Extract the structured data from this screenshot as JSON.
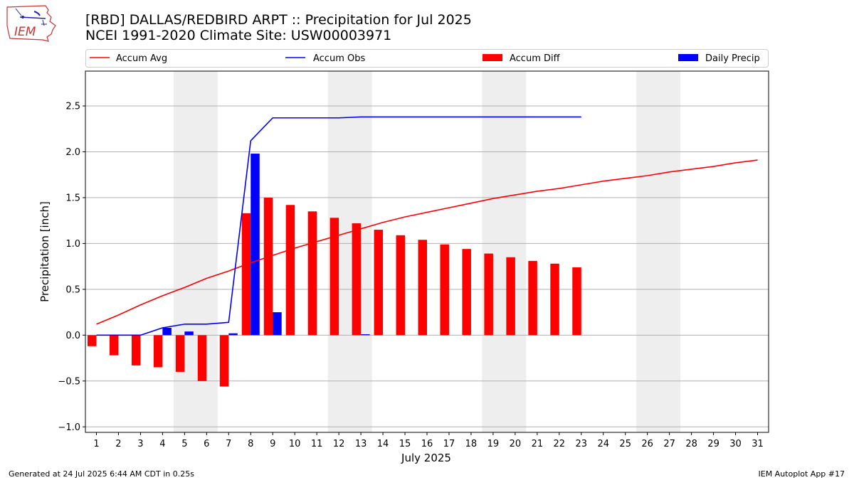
{
  "header": {
    "title_line1": "[RBD] DALLAS/REDBIRD ARPT :: Precipitation for Jul 2025",
    "title_line2": "NCEI 1991-2020 Climate Site: USW00003971",
    "logo_text": "IEM"
  },
  "footer": {
    "left": "Generated at 24 Jul 2025 6:44 AM CDT in 0.25s",
    "right": "IEM Autoplot App #17"
  },
  "colors": {
    "avg": "#ff0000",
    "obs": "#0000ff",
    "diff": "#ff0000",
    "daily": "#0000ff",
    "weekend_shade": "#eeeeee",
    "grid": "#b0b0b0"
  },
  "chart_data": {
    "type": "bar",
    "title": "[RBD] DALLAS/REDBIRD ARPT :: Precipitation for Jul 2025",
    "subtitle": "NCEI 1991-2020 Climate Site: USW00003971",
    "xlabel": "July 2025",
    "ylabel": "Precipitation [inch]",
    "x": [
      1,
      2,
      3,
      4,
      5,
      6,
      7,
      8,
      9,
      10,
      11,
      12,
      13,
      14,
      15,
      16,
      17,
      18,
      19,
      20,
      21,
      22,
      23,
      24,
      25,
      26,
      27,
      28,
      29,
      30,
      31
    ],
    "ylim": [
      -1.06,
      2.88
    ],
    "xlim": [
      0.5,
      31.5
    ],
    "yticks": [
      -1.0,
      -0.5,
      0.0,
      0.5,
      1.0,
      1.5,
      2.0,
      2.5
    ],
    "ytick_labels": [
      "−1.0",
      "−0.5",
      "0.0",
      "0.5",
      "1.0",
      "1.5",
      "2.0",
      "2.5"
    ],
    "grid": true,
    "legend_position": "top",
    "weekend_shading": [
      [
        4.5,
        6.5
      ],
      [
        11.5,
        13.5
      ],
      [
        18.5,
        20.5
      ],
      [
        25.5,
        27.5
      ]
    ],
    "series": [
      {
        "name": "Accum Avg",
        "kind": "line",
        "x": [
          1,
          2,
          3,
          4,
          5,
          6,
          7,
          8,
          9,
          10,
          11,
          12,
          13,
          14,
          15,
          16,
          17,
          18,
          19,
          20,
          21,
          22,
          23,
          24,
          25,
          26,
          27,
          28,
          29,
          30,
          31
        ],
        "values": [
          0.12,
          0.22,
          0.33,
          0.43,
          0.52,
          0.62,
          0.7,
          0.79,
          0.87,
          0.95,
          1.02,
          1.09,
          1.16,
          1.23,
          1.29,
          1.34,
          1.39,
          1.44,
          1.49,
          1.53,
          1.57,
          1.6,
          1.64,
          1.68,
          1.71,
          1.74,
          1.78,
          1.81,
          1.84,
          1.88,
          1.91
        ]
      },
      {
        "name": "Accum Obs",
        "kind": "line",
        "x": [
          1,
          2,
          3,
          4,
          5,
          6,
          7,
          8,
          9,
          10,
          11,
          12,
          13,
          14,
          15,
          16,
          17,
          18,
          19,
          20,
          21,
          22,
          23
        ],
        "values": [
          0.0,
          0.0,
          0.0,
          0.08,
          0.12,
          0.12,
          0.14,
          2.12,
          2.37,
          2.37,
          2.37,
          2.37,
          2.38,
          2.38,
          2.38,
          2.38,
          2.38,
          2.38,
          2.38,
          2.38,
          2.38,
          2.38,
          2.38
        ]
      },
      {
        "name": "Accum Diff",
        "kind": "bar",
        "x": [
          1,
          2,
          3,
          4,
          5,
          6,
          7,
          8,
          9,
          10,
          11,
          12,
          13,
          14,
          15,
          16,
          17,
          18,
          19,
          20,
          21,
          22,
          23
        ],
        "values": [
          -0.12,
          -0.22,
          -0.33,
          -0.35,
          -0.4,
          -0.5,
          -0.56,
          1.33,
          1.5,
          1.42,
          1.35,
          1.28,
          1.22,
          1.15,
          1.09,
          1.04,
          0.99,
          0.94,
          0.89,
          0.85,
          0.81,
          0.78,
          0.74
        ]
      },
      {
        "name": "Daily Precip",
        "kind": "bar",
        "x": [
          1,
          2,
          3,
          4,
          5,
          6,
          7,
          8,
          9,
          10,
          11,
          12,
          13,
          14,
          15,
          16,
          17,
          18,
          19,
          20,
          21,
          22,
          23
        ],
        "values": [
          0.0,
          0.0,
          0.0,
          0.08,
          0.04,
          0.0,
          0.02,
          1.98,
          0.25,
          0.0,
          0.0,
          0.0,
          0.01,
          0.0,
          0.0,
          0.0,
          0.0,
          0.0,
          0.0,
          0.0,
          0.0,
          0.0,
          0.0
        ]
      }
    ]
  }
}
